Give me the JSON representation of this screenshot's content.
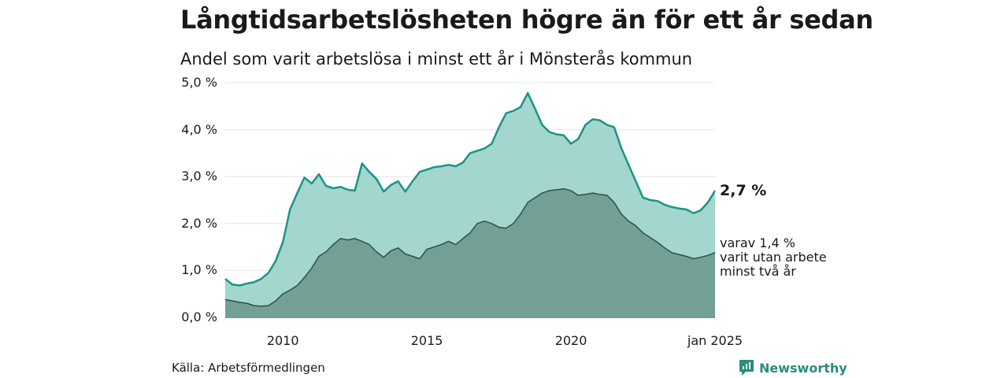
{
  "title": "Långtidsarbetslösheten högre än för ett år sedan",
  "subtitle": "Andel som varit arbetslösa i minst ett år i Mönsterås kommun",
  "source": "Källa: Arbetsförmedlingen",
  "brand": "Newsworthy",
  "annotations": {
    "last_value": "2,7 %",
    "sub_value_lines": [
      "varav 1,4 %",
      "varit utan arbete",
      "minst två år"
    ]
  },
  "colors": {
    "long_term_line": "#1a9484",
    "long_term_fill": "#a3d6cf",
    "two_year_fill": "#72a096",
    "two_year_line": "#2f4f48",
    "grid": "#e4e4e4",
    "brand": "#2a8c7c"
  },
  "chart_data": {
    "type": "area",
    "x_axis": {
      "range": [
        "2008-01",
        "2025-01"
      ],
      "ticks": [
        {
          "x": "2010-01",
          "label": "2010"
        },
        {
          "x": "2015-01",
          "label": "2015"
        },
        {
          "x": "2020-01",
          "label": "2020"
        },
        {
          "x": "2025-01",
          "label": "jan 2025"
        }
      ]
    },
    "y_axis": {
      "range": [
        0,
        5
      ],
      "ticks": [
        {
          "y": 0,
          "label": "0,0 %"
        },
        {
          "y": 1,
          "label": "1,0 %"
        },
        {
          "y": 2,
          "label": "2,0 %"
        },
        {
          "y": 3,
          "label": "3,0 %"
        },
        {
          "y": 4,
          "label": "4,0 %"
        },
        {
          "y": 5,
          "label": "5,0 %"
        }
      ]
    },
    "grid": true,
    "series": [
      {
        "name": "Andel som varit arbetslösa i minst ett år",
        "points": [
          [
            "2008-01",
            0.82
          ],
          [
            "2008-04",
            0.7
          ],
          [
            "2008-07",
            0.68
          ],
          [
            "2008-10",
            0.72
          ],
          [
            "2009-01",
            0.75
          ],
          [
            "2009-04",
            0.82
          ],
          [
            "2009-07",
            0.95
          ],
          [
            "2009-10",
            1.2
          ],
          [
            "2010-01",
            1.6
          ],
          [
            "2010-04",
            2.3
          ],
          [
            "2010-07",
            2.65
          ],
          [
            "2010-10",
            2.98
          ],
          [
            "2011-01",
            2.85
          ],
          [
            "2011-04",
            3.05
          ],
          [
            "2011-07",
            2.8
          ],
          [
            "2011-10",
            2.75
          ],
          [
            "2012-01",
            2.78
          ],
          [
            "2012-04",
            2.72
          ],
          [
            "2012-07",
            2.7
          ],
          [
            "2012-10",
            3.28
          ],
          [
            "2013-01",
            3.1
          ],
          [
            "2013-04",
            2.95
          ],
          [
            "2013-07",
            2.68
          ],
          [
            "2013-10",
            2.82
          ],
          [
            "2014-01",
            2.9
          ],
          [
            "2014-04",
            2.68
          ],
          [
            "2014-07",
            2.9
          ],
          [
            "2014-10",
            3.1
          ],
          [
            "2015-01",
            3.15
          ],
          [
            "2015-04",
            3.2
          ],
          [
            "2015-07",
            3.22
          ],
          [
            "2015-10",
            3.25
          ],
          [
            "2016-01",
            3.22
          ],
          [
            "2016-04",
            3.3
          ],
          [
            "2016-07",
            3.5
          ],
          [
            "2016-10",
            3.55
          ],
          [
            "2017-01",
            3.6
          ],
          [
            "2017-04",
            3.7
          ],
          [
            "2017-07",
            4.05
          ],
          [
            "2017-10",
            4.35
          ],
          [
            "2018-01",
            4.4
          ],
          [
            "2018-04",
            4.48
          ],
          [
            "2018-07",
            4.78
          ],
          [
            "2018-10",
            4.45
          ],
          [
            "2019-01",
            4.1
          ],
          [
            "2019-04",
            3.95
          ],
          [
            "2019-07",
            3.9
          ],
          [
            "2019-10",
            3.88
          ],
          [
            "2020-01",
            3.7
          ],
          [
            "2020-04",
            3.8
          ],
          [
            "2020-07",
            4.1
          ],
          [
            "2020-10",
            4.22
          ],
          [
            "2021-01",
            4.2
          ],
          [
            "2021-04",
            4.1
          ],
          [
            "2021-07",
            4.05
          ],
          [
            "2021-10",
            3.6
          ],
          [
            "2022-01",
            3.25
          ],
          [
            "2022-04",
            2.9
          ],
          [
            "2022-07",
            2.55
          ],
          [
            "2022-10",
            2.5
          ],
          [
            "2023-01",
            2.48
          ],
          [
            "2023-04",
            2.4
          ],
          [
            "2023-07",
            2.35
          ],
          [
            "2023-10",
            2.32
          ],
          [
            "2024-01",
            2.3
          ],
          [
            "2024-04",
            2.22
          ],
          [
            "2024-07",
            2.28
          ],
          [
            "2024-10",
            2.45
          ],
          [
            "2025-01",
            2.7
          ]
        ]
      },
      {
        "name": "varit utan arbete minst två år",
        "points": [
          [
            "2008-01",
            0.38
          ],
          [
            "2008-04",
            0.35
          ],
          [
            "2008-07",
            0.32
          ],
          [
            "2008-10",
            0.3
          ],
          [
            "2009-01",
            0.25
          ],
          [
            "2009-04",
            0.24
          ],
          [
            "2009-07",
            0.25
          ],
          [
            "2009-10",
            0.35
          ],
          [
            "2010-01",
            0.5
          ],
          [
            "2010-04",
            0.58
          ],
          [
            "2010-07",
            0.68
          ],
          [
            "2010-10",
            0.85
          ],
          [
            "2011-01",
            1.05
          ],
          [
            "2011-04",
            1.3
          ],
          [
            "2011-07",
            1.4
          ],
          [
            "2011-10",
            1.55
          ],
          [
            "2012-01",
            1.68
          ],
          [
            "2012-04",
            1.65
          ],
          [
            "2012-07",
            1.68
          ],
          [
            "2012-10",
            1.62
          ],
          [
            "2013-01",
            1.55
          ],
          [
            "2013-04",
            1.4
          ],
          [
            "2013-07",
            1.28
          ],
          [
            "2013-10",
            1.42
          ],
          [
            "2014-01",
            1.48
          ],
          [
            "2014-04",
            1.35
          ],
          [
            "2014-07",
            1.3
          ],
          [
            "2014-10",
            1.25
          ],
          [
            "2015-01",
            1.45
          ],
          [
            "2015-04",
            1.5
          ],
          [
            "2015-07",
            1.55
          ],
          [
            "2015-10",
            1.62
          ],
          [
            "2016-01",
            1.55
          ],
          [
            "2016-04",
            1.68
          ],
          [
            "2016-07",
            1.8
          ],
          [
            "2016-10",
            2.0
          ],
          [
            "2017-01",
            2.05
          ],
          [
            "2017-04",
            2.0
          ],
          [
            "2017-07",
            1.92
          ],
          [
            "2017-10",
            1.9
          ],
          [
            "2018-01",
            2.0
          ],
          [
            "2018-04",
            2.2
          ],
          [
            "2018-07",
            2.45
          ],
          [
            "2018-10",
            2.55
          ],
          [
            "2019-01",
            2.65
          ],
          [
            "2019-04",
            2.7
          ],
          [
            "2019-07",
            2.72
          ],
          [
            "2019-10",
            2.74
          ],
          [
            "2020-01",
            2.7
          ],
          [
            "2020-04",
            2.6
          ],
          [
            "2020-07",
            2.62
          ],
          [
            "2020-10",
            2.65
          ],
          [
            "2021-01",
            2.62
          ],
          [
            "2021-04",
            2.6
          ],
          [
            "2021-07",
            2.45
          ],
          [
            "2021-10",
            2.2
          ],
          [
            "2022-01",
            2.05
          ],
          [
            "2022-04",
            1.95
          ],
          [
            "2022-07",
            1.8
          ],
          [
            "2022-10",
            1.7
          ],
          [
            "2023-01",
            1.6
          ],
          [
            "2023-04",
            1.48
          ],
          [
            "2023-07",
            1.38
          ],
          [
            "2023-10",
            1.34
          ],
          [
            "2024-01",
            1.3
          ],
          [
            "2024-04",
            1.25
          ],
          [
            "2024-07",
            1.28
          ],
          [
            "2024-10",
            1.32
          ],
          [
            "2025-01",
            1.38
          ]
        ]
      }
    ]
  }
}
